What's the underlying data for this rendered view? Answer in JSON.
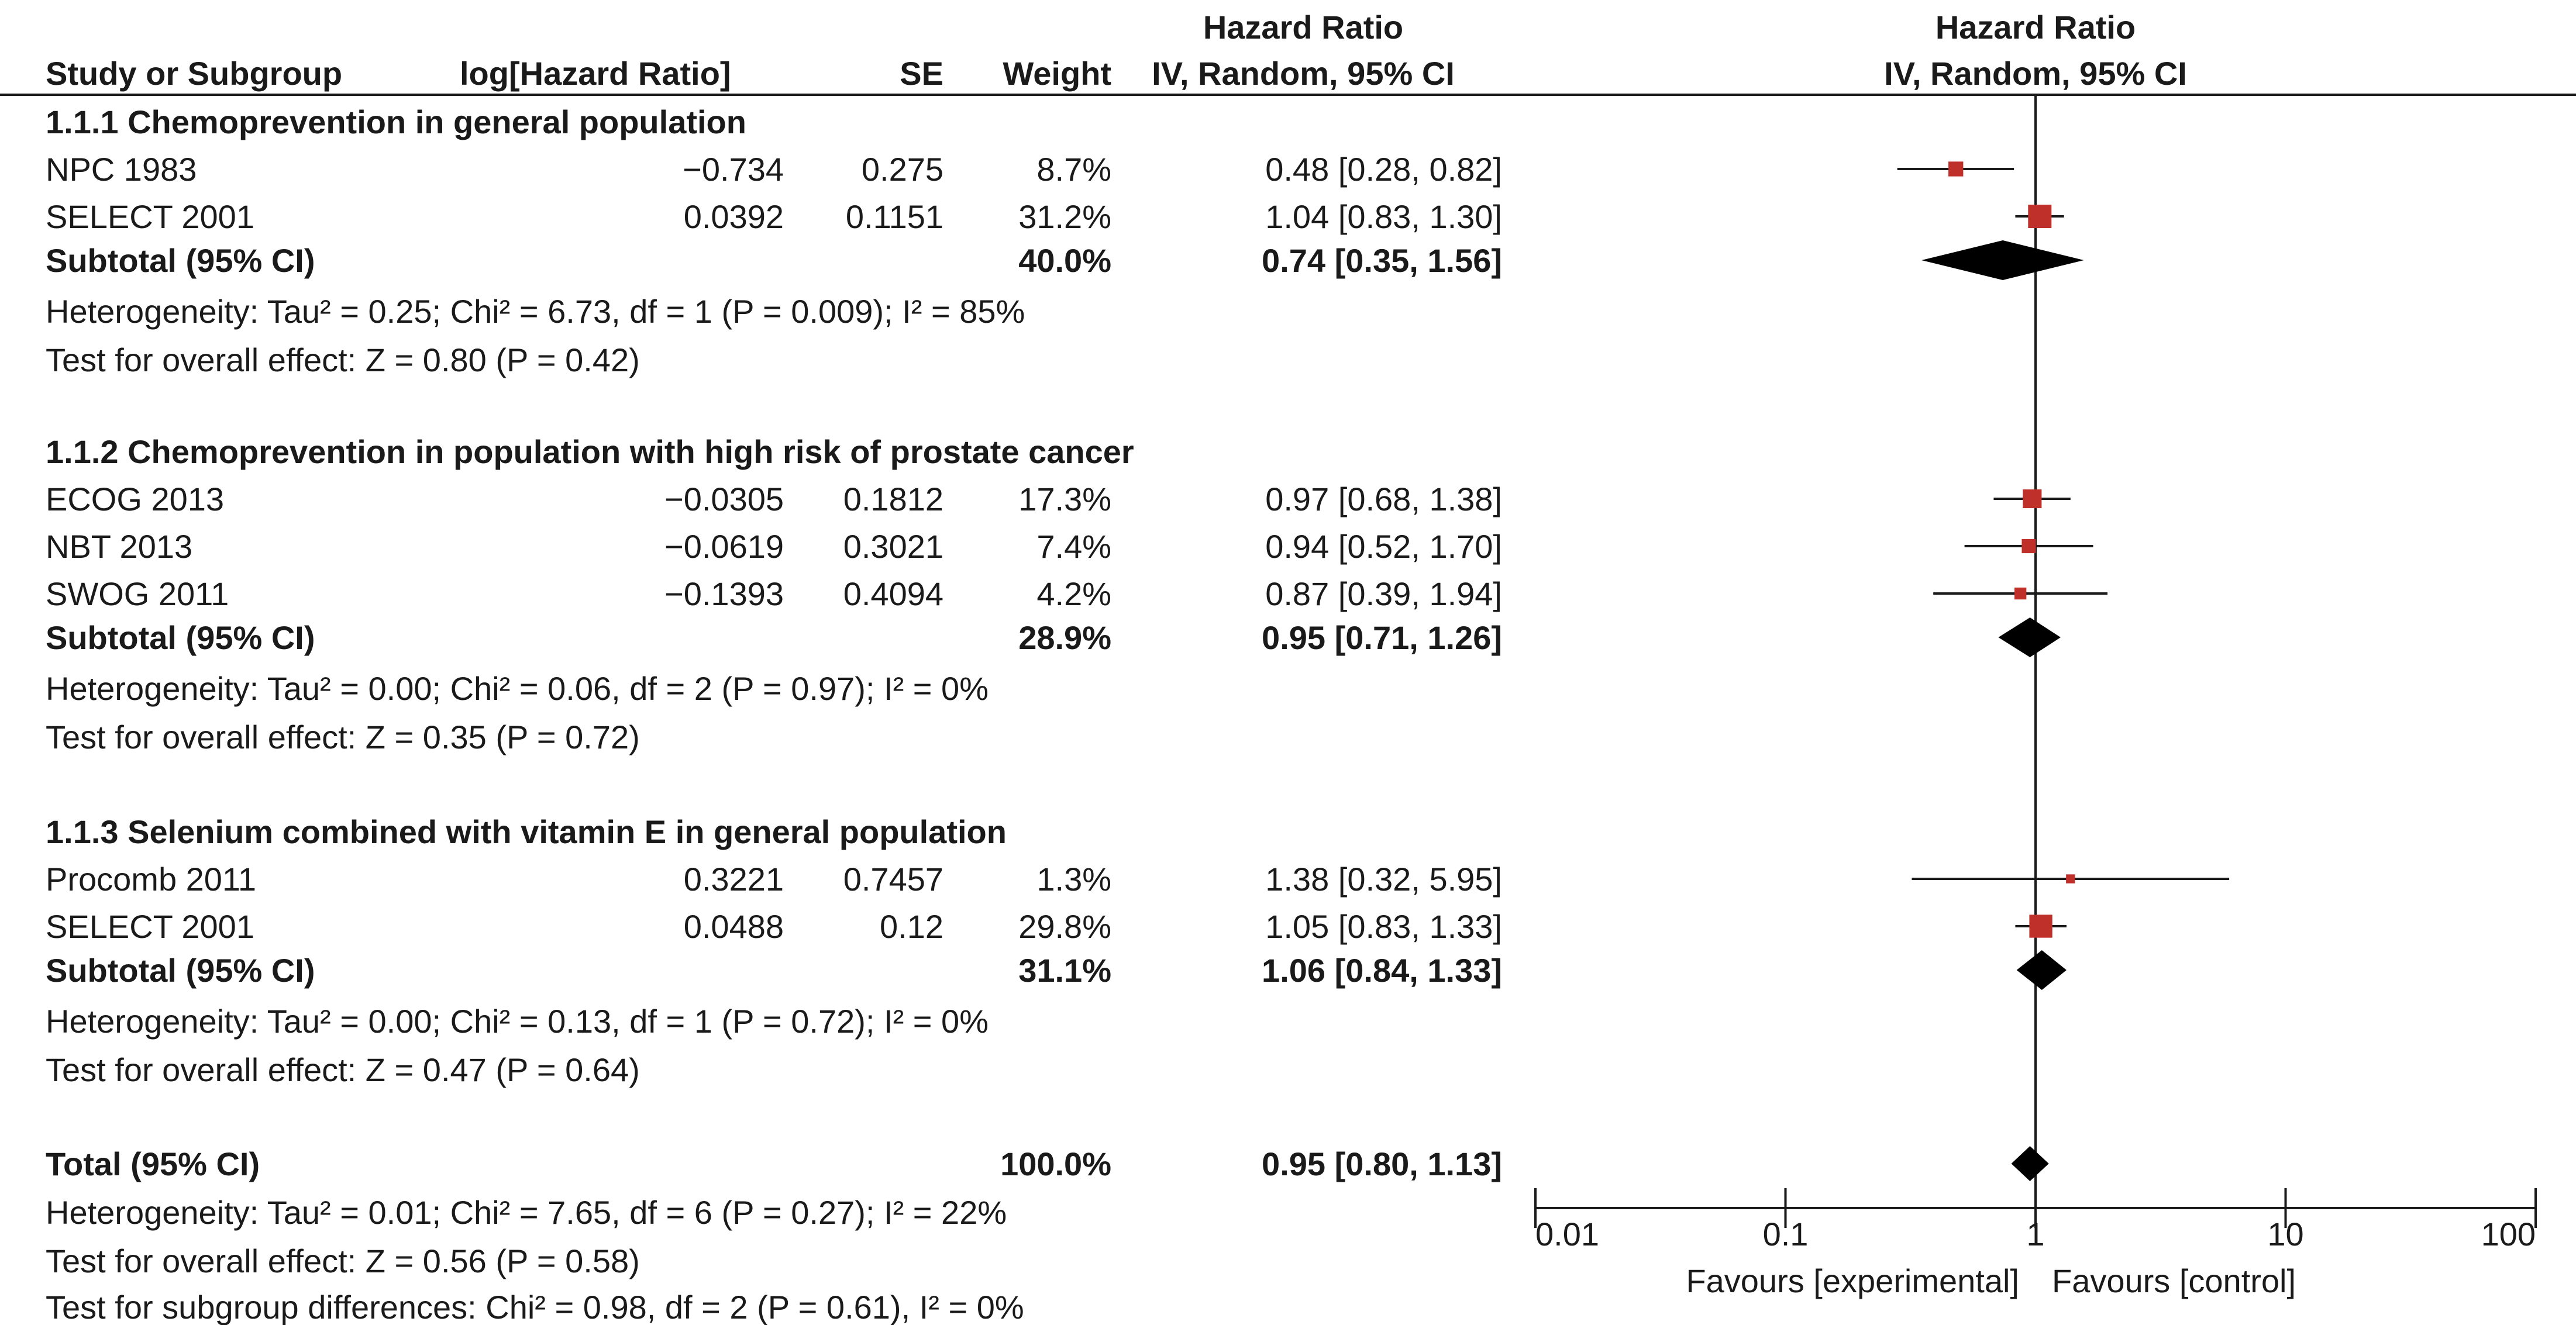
{
  "chart_data": {
    "type": "forest",
    "columns": {
      "study": "Study or Subgroup",
      "log_hr": "log[Hazard Ratio]",
      "se": "SE",
      "weight": "Weight",
      "hr_top": "Hazard Ratio",
      "hr_sub": "IV, Random, 95% CI",
      "plot_top": "Hazard Ratio",
      "plot_sub": "IV, Random, 95% CI"
    },
    "groups": [
      {
        "title": "1.1.1 Chemoprevention in general population",
        "studies": [
          {
            "name": "NPC 1983",
            "log_hr": "−0.734",
            "se": "0.275",
            "weight_label": "8.7%",
            "ci_label": "0.48 [0.28, 0.82]",
            "hr": 0.48,
            "lo": 0.28,
            "hi": 0.82,
            "weight": 8.7
          },
          {
            "name": "SELECT 2001",
            "log_hr": "0.0392",
            "se": "0.1151",
            "weight_label": "31.2%",
            "ci_label": "1.04 [0.83, 1.30]",
            "hr": 1.04,
            "lo": 0.83,
            "hi": 1.3,
            "weight": 31.2
          }
        ],
        "subtotal": {
          "label": "Subtotal (95% CI)",
          "weight_label": "40.0%",
          "ci_label": "0.74 [0.35, 1.56]",
          "hr": 0.74,
          "lo": 0.35,
          "hi": 1.56
        },
        "heterogeneity": "Heterogeneity: Tau² = 0.25; Chi² = 6.73, df = 1 (P = 0.009); I² = 85%",
        "overall": "Test for overall effect: Z = 0.80 (P = 0.42)"
      },
      {
        "title": "1.1.2 Chemoprevention in population with high risk of prostate cancer",
        "studies": [
          {
            "name": "ECOG 2013",
            "log_hr": "−0.0305",
            "se": "0.1812",
            "weight_label": "17.3%",
            "ci_label": "0.97 [0.68, 1.38]",
            "hr": 0.97,
            "lo": 0.68,
            "hi": 1.38,
            "weight": 17.3
          },
          {
            "name": "NBT 2013",
            "log_hr": "−0.0619",
            "se": "0.3021",
            "weight_label": "7.4%",
            "ci_label": "0.94 [0.52, 1.70]",
            "hr": 0.94,
            "lo": 0.52,
            "hi": 1.7,
            "weight": 7.4
          },
          {
            "name": "SWOG 2011",
            "log_hr": "−0.1393",
            "se": "0.4094",
            "weight_label": "4.2%",
            "ci_label": "0.87 [0.39, 1.94]",
            "hr": 0.87,
            "lo": 0.39,
            "hi": 1.94,
            "weight": 4.2
          }
        ],
        "subtotal": {
          "label": "Subtotal (95% CI)",
          "weight_label": "28.9%",
          "ci_label": "0.95 [0.71, 1.26]",
          "hr": 0.95,
          "lo": 0.71,
          "hi": 1.26
        },
        "heterogeneity": "Heterogeneity: Tau² = 0.00; Chi² = 0.06, df = 2 (P = 0.97); I² = 0%",
        "overall": "Test for overall effect: Z = 0.35 (P = 0.72)"
      },
      {
        "title": "1.1.3 Selenium combined with vitamin E in general population",
        "studies": [
          {
            "name": "Procomb 2011",
            "log_hr": "0.3221",
            "se": "0.7457",
            "weight_label": "1.3%",
            "ci_label": "1.38 [0.32, 5.95]",
            "hr": 1.38,
            "lo": 0.32,
            "hi": 5.95,
            "weight": 1.3
          },
          {
            "name": "SELECT 2001",
            "log_hr": "0.0488",
            "se": "0.12",
            "weight_label": "29.8%",
            "ci_label": "1.05 [0.83, 1.33]",
            "hr": 1.05,
            "lo": 0.83,
            "hi": 1.33,
            "weight": 29.8
          }
        ],
        "subtotal": {
          "label": "Subtotal (95% CI)",
          "weight_label": "31.1%",
          "ci_label": "1.06 [0.84, 1.33]",
          "hr": 1.06,
          "lo": 0.84,
          "hi": 1.33
        },
        "heterogeneity": "Heterogeneity: Tau² = 0.00; Chi² = 0.13, df = 1 (P = 0.72); I² = 0%",
        "overall": "Test for overall effect: Z = 0.47 (P = 0.64)"
      }
    ],
    "total": {
      "label": "Total (95% CI)",
      "weight_label": "100.0%",
      "ci_label": "0.95 [0.80, 1.13]",
      "hr": 0.95,
      "lo": 0.8,
      "hi": 1.13,
      "heterogeneity": "Heterogeneity: Tau² = 0.01; Chi² = 7.65, df = 6 (P = 0.27); I² = 22%",
      "overall": "Test for overall effect: Z = 0.56 (P = 0.58)",
      "subgroup": "Test for subgroup differences: Chi² = 0.98, df = 2 (P = 0.61), I² = 0%"
    },
    "axis": {
      "scale": "log",
      "range": [
        0.01,
        100
      ],
      "ticks": [
        0.01,
        0.1,
        1,
        10,
        100
      ],
      "tick_labels": [
        "0.01",
        "0.1",
        "1",
        "10",
        "100"
      ],
      "null_value": 1,
      "favours_left": "Favours [experimental]",
      "favours_right": "Favours [control]"
    },
    "colors": {
      "study_marker": "#c0302b",
      "pooled": "#000000",
      "line": "#1a1a1a"
    }
  }
}
